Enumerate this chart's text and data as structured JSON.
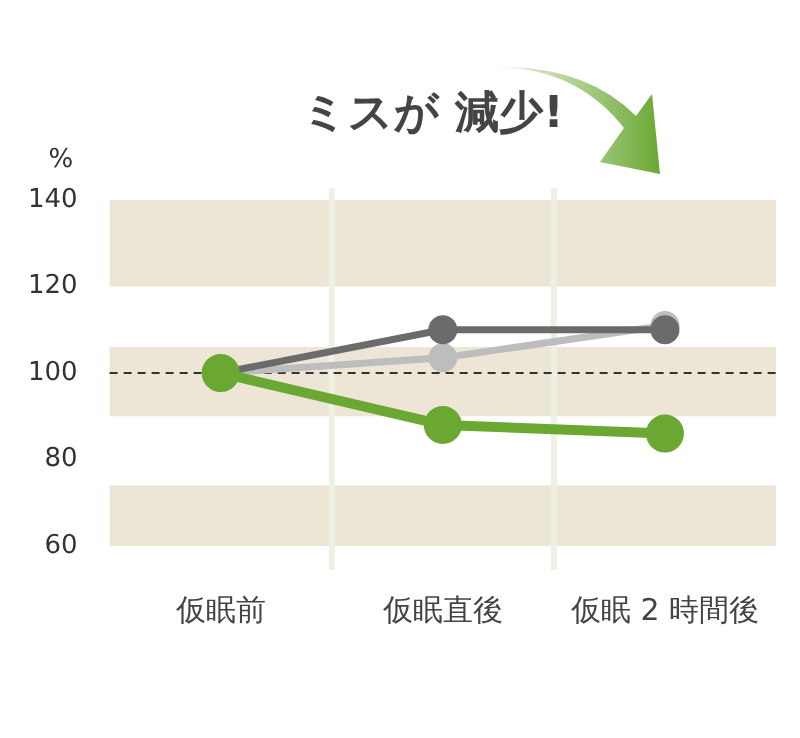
{
  "chart_data": {
    "type": "line",
    "title": "ミスが 減少!",
    "ylabel": "%",
    "categories": [
      "仮眠前",
      "仮眠直後",
      "仮眠 2 時間後"
    ],
    "series": [
      {
        "color": "#bdbdbd",
        "values": [
          100,
          103.5,
          111
        ]
      },
      {
        "color": "#6b6b6b",
        "values": [
          100,
          110,
          110
        ]
      },
      {
        "color": "#6aa832",
        "values": [
          100,
          88,
          86
        ]
      }
    ],
    "ylim": [
      60,
      140
    ],
    "yticks": [
      60,
      80,
      100,
      120,
      140
    ],
    "grid": "x",
    "marker": "circle",
    "line_style": "solid",
    "legend": false,
    "ref_lines": [
      {
        "axis": "y",
        "value": 100,
        "label": null,
        "color": "#333333",
        "line_style": "dashed"
      }
    ],
    "bands": [
      {
        "axis": "y",
        "from": 120,
        "to": 140,
        "label": null,
        "color": "#ede6d6"
      },
      {
        "axis": "y",
        "from": 90,
        "to": 106,
        "label": null,
        "color": "#ede6d6"
      },
      {
        "axis": "y",
        "from": 60,
        "to": 74,
        "label": null,
        "color": "#ede6d6"
      }
    ]
  }
}
